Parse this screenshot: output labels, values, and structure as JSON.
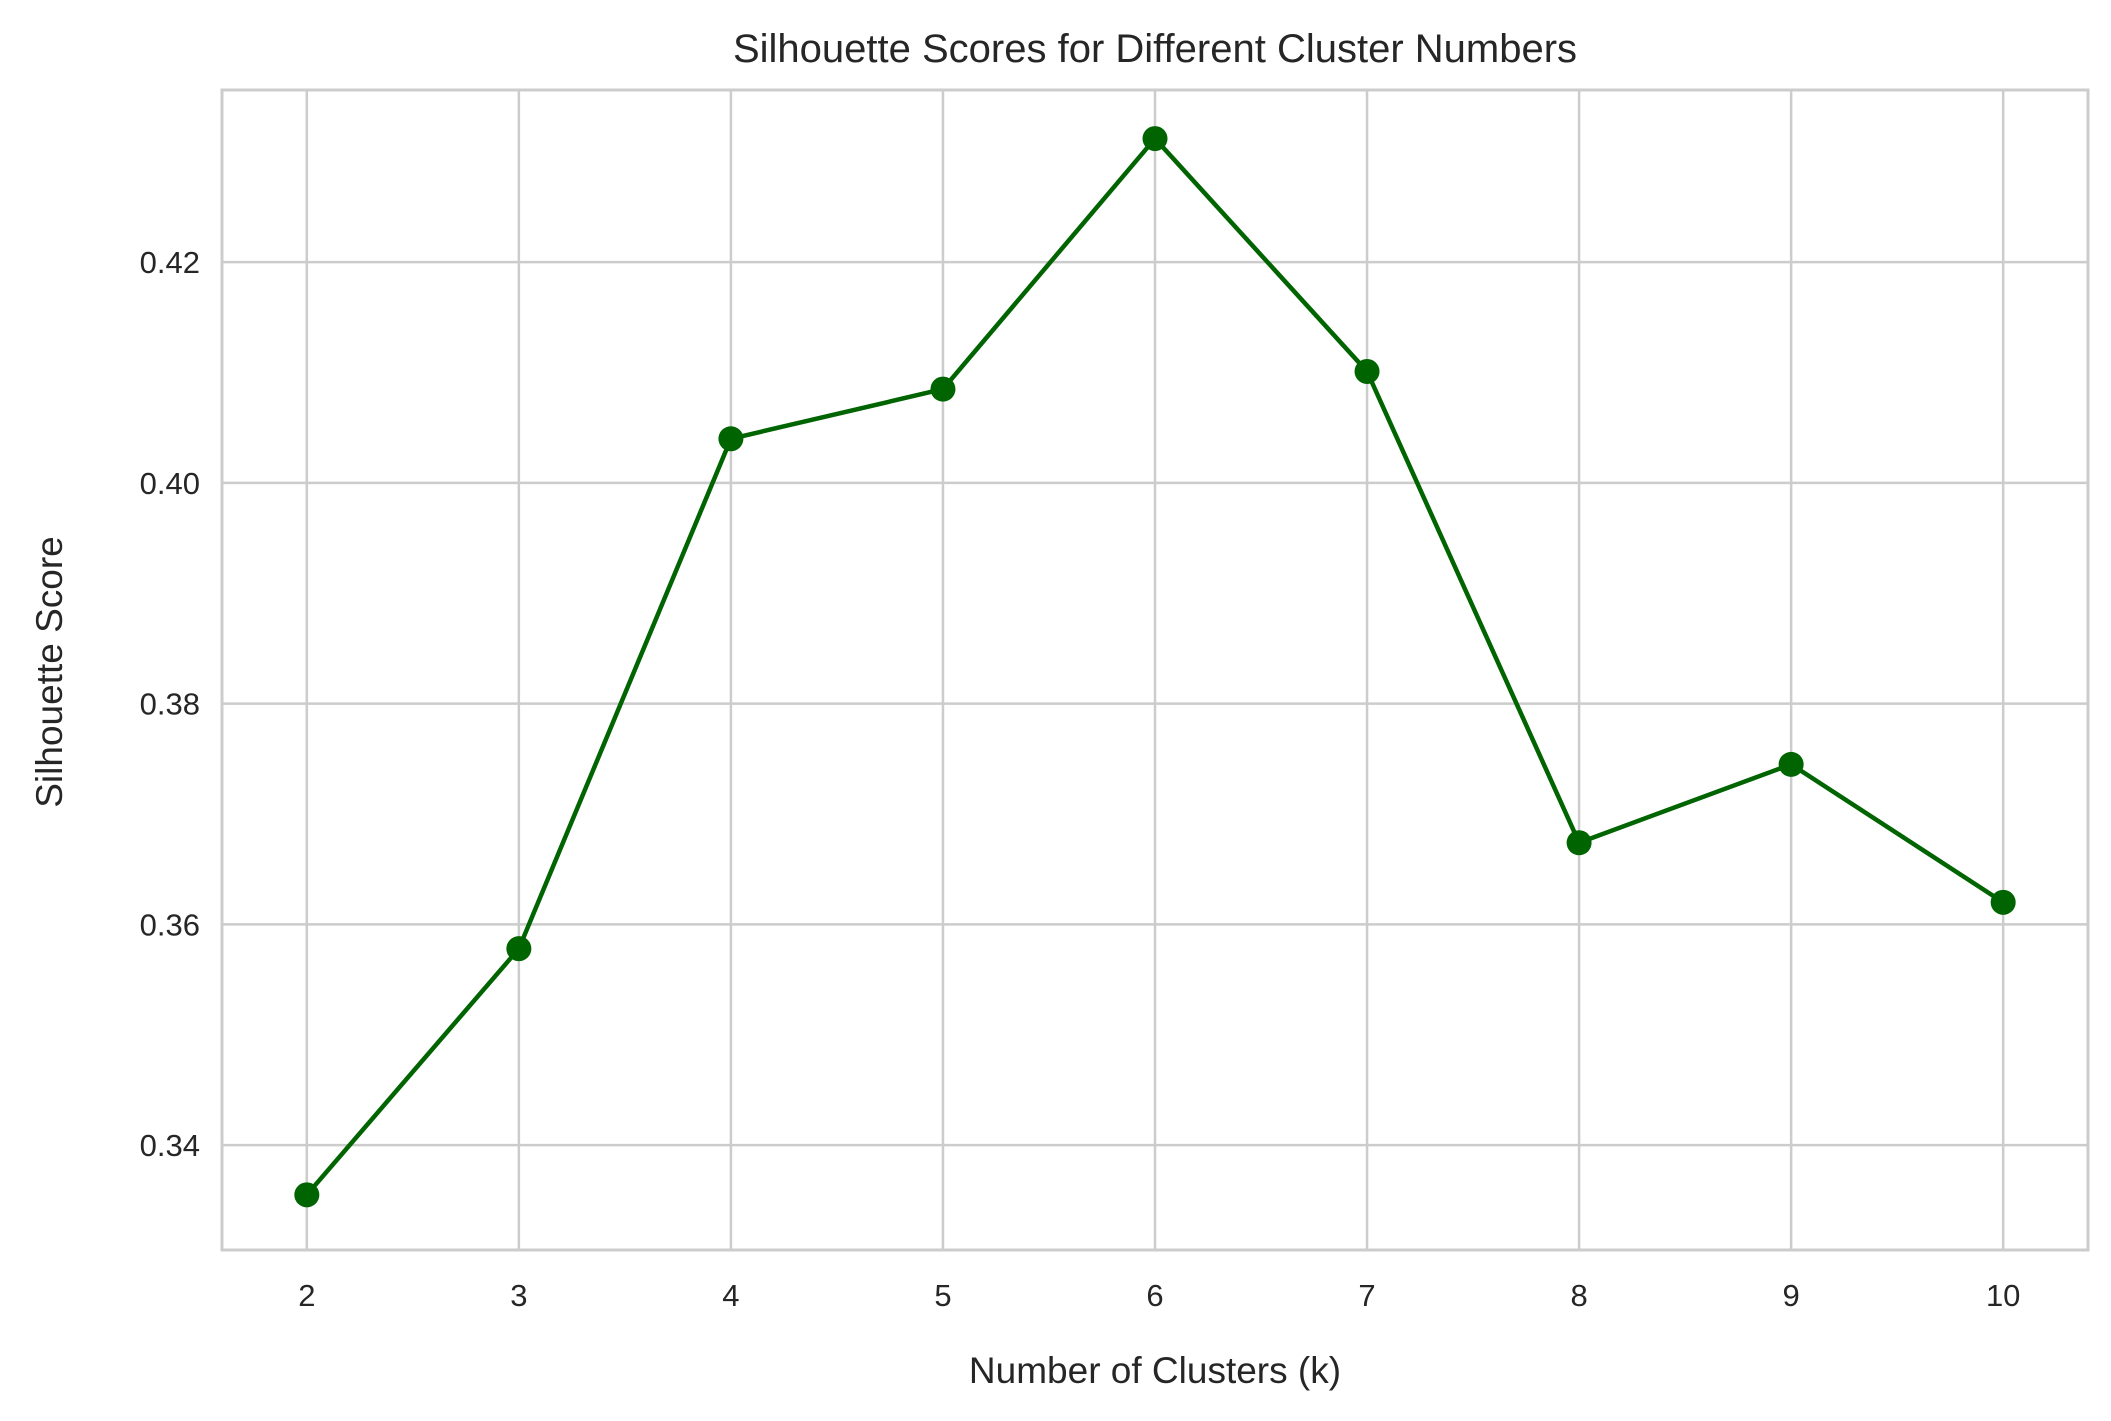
{
  "chart_data": {
    "type": "line",
    "title": "Silhouette Scores for Different Cluster Numbers",
    "xlabel": "Number of Clusters (k)",
    "ylabel": "Silhouette Score",
    "x": [
      2,
      3,
      4,
      5,
      6,
      7,
      8,
      9,
      10
    ],
    "xticks": [
      "2",
      "3",
      "4",
      "5",
      "6",
      "7",
      "8",
      "9",
      "10"
    ],
    "yticks": [
      "0.34",
      "0.36",
      "0.38",
      "0.40",
      "0.42"
    ],
    "ytick_values": [
      0.34,
      0.36,
      0.38,
      0.4,
      0.42
    ],
    "xlim": [
      1.6,
      10.4
    ],
    "ylim": [
      0.3305,
      0.4356
    ],
    "grid": true,
    "series": [
      {
        "values": [
          0.3355,
          0.3578,
          0.404,
          0.4085,
          0.4312,
          0.4101,
          0.3674,
          0.3745,
          0.362
        ],
        "color": "#006400",
        "marker": "circle"
      }
    ],
    "colors": {
      "grid": "#cccccc",
      "frame": "#cccccc",
      "text": "#262626"
    }
  }
}
